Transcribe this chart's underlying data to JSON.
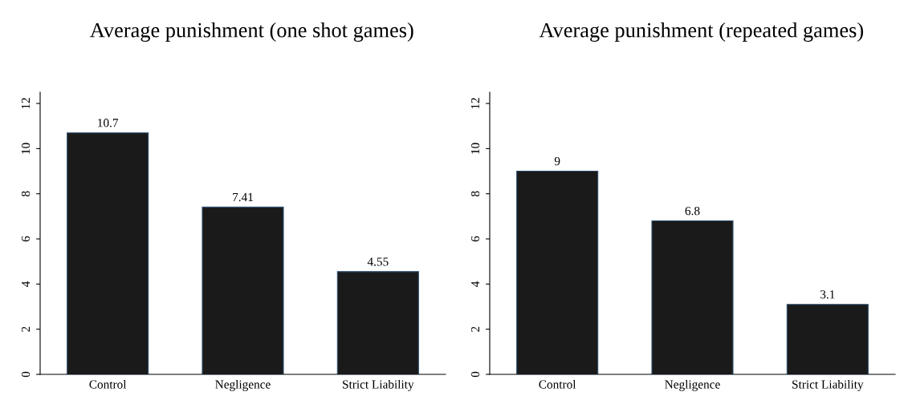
{
  "chart_data": [
    {
      "type": "bar",
      "title": "Average punishment (one shot games)",
      "categories": [
        "Control",
        "Negligence",
        "Strict Liability"
      ],
      "values": [
        10.7,
        7.41,
        4.55
      ],
      "color": "#1a1a1a",
      "ylim": [
        0,
        12.5
      ],
      "yticks": [
        0,
        2,
        4,
        6,
        8,
        10,
        12
      ],
      "data_labels": true,
      "grid": false,
      "legend": false
    },
    {
      "type": "bar",
      "title": "Average punishment (repeated games)",
      "categories": [
        "Control",
        "Negligence",
        "Strict Liability"
      ],
      "values": [
        9,
        6.8,
        3.1
      ],
      "color": "#1a1a1a",
      "ylim": [
        0,
        12.5
      ],
      "yticks": [
        0,
        2,
        4,
        6,
        8,
        10,
        12
      ],
      "data_labels": true,
      "grid": false,
      "legend": false
    }
  ]
}
